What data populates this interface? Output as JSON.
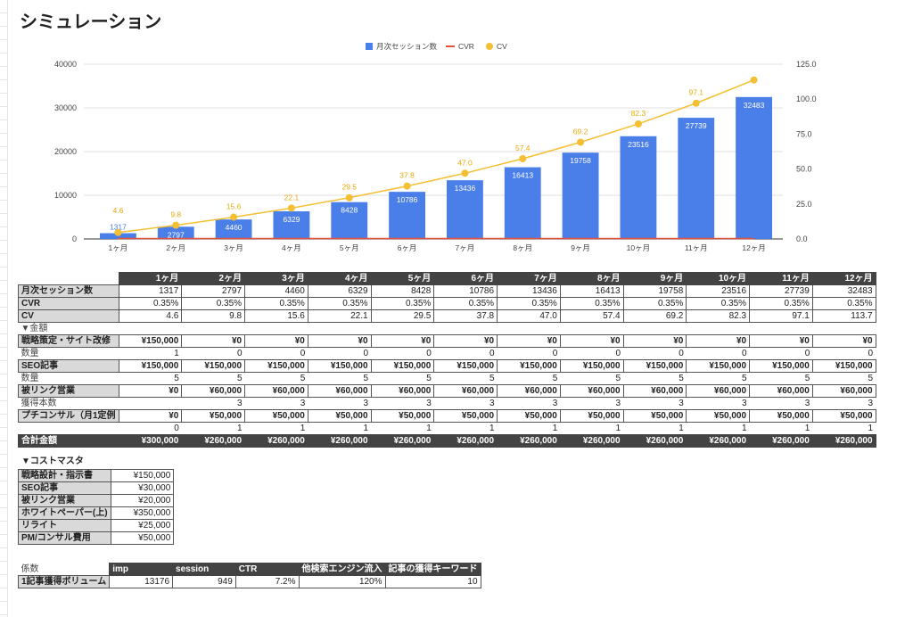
{
  "title": "シミュレーション",
  "chart_data": {
    "type": "bar",
    "legend": [
      "月次セッション数",
      "CVR",
      "CV"
    ],
    "legend_position": "top",
    "categories": [
      "1ヶ月",
      "2ヶ月",
      "3ヶ月",
      "4ヶ月",
      "5ヶ月",
      "6ヶ月",
      "7ヶ月",
      "8ヶ月",
      "9ヶ月",
      "10ヶ月",
      "11ヶ月",
      "12ヶ月"
    ],
    "series": [
      {
        "name": "月次セッション数",
        "type": "bar",
        "axis": "left",
        "color": "#4a7ee8",
        "values": [
          1317,
          2797,
          4460,
          6329,
          8428,
          10786,
          13436,
          16413,
          19758,
          23516,
          27739,
          32483
        ]
      },
      {
        "name": "CVR",
        "type": "line",
        "axis": "right",
        "color": "#e0533e",
        "values": [
          0.35,
          0.35,
          0.35,
          0.35,
          0.35,
          0.35,
          0.35,
          0.35,
          0.35,
          0.35,
          0.35,
          0.35
        ]
      },
      {
        "name": "CV",
        "type": "line",
        "axis": "right",
        "color": "#f4bf32",
        "values": [
          4.6,
          9.8,
          15.6,
          22.1,
          29.5,
          37.8,
          47.0,
          57.4,
          69.2,
          82.3,
          97.1,
          113.7
        ],
        "labels": [
          "4.6",
          "9.8",
          "15.6",
          "22.1",
          "29.5",
          "37.8",
          "47.0",
          "57.4",
          "69.2",
          "82.3",
          "97.1",
          ""
        ]
      }
    ],
    "ylim": [
      0,
      40000
    ],
    "yticks": [
      "0",
      "10000",
      "20000",
      "30000",
      "40000"
    ],
    "y2lim": [
      0,
      125
    ],
    "y2ticks": [
      "0.0",
      "25.0",
      "50.0",
      "75.0",
      "100.0",
      "125.0"
    ]
  },
  "sim": {
    "headers": [
      "1ヶ月",
      "2ヶ月",
      "3ヶ月",
      "4ヶ月",
      "5ヶ月",
      "6ヶ月",
      "7ヶ月",
      "8ヶ月",
      "9ヶ月",
      "10ヶ月",
      "11ヶ月",
      "12ヶ月"
    ],
    "rows": [
      {
        "label": "月次セッション数",
        "style": "lab",
        "values": [
          "1317",
          "2797",
          "4460",
          "6329",
          "8428",
          "10786",
          "13436",
          "16413",
          "19758",
          "23516",
          "27739",
          "32483"
        ]
      },
      {
        "label": "CVR",
        "style": "lab",
        "values": [
          "0.35%",
          "0.35%",
          "0.35%",
          "0.35%",
          "0.35%",
          "0.35%",
          "0.35%",
          "0.35%",
          "0.35%",
          "0.35%",
          "0.35%",
          "0.35%"
        ]
      },
      {
        "label": "CV",
        "style": "lab",
        "values": [
          "4.6",
          "9.8",
          "15.6",
          "22.1",
          "29.5",
          "37.8",
          "47.0",
          "57.4",
          "69.2",
          "82.3",
          "97.1",
          "113.7"
        ]
      },
      {
        "label": "▼金額",
        "style": "section",
        "values": []
      },
      {
        "label": "戦略策定・サイト改修",
        "style": "labb",
        "values": [
          "¥150,000",
          "¥0",
          "¥0",
          "¥0",
          "¥0",
          "¥0",
          "¥0",
          "¥0",
          "¥0",
          "¥0",
          "¥0",
          "¥0"
        ]
      },
      {
        "label": "数量",
        "style": "plain",
        "values": [
          "1",
          "0",
          "0",
          "0",
          "0",
          "0",
          "0",
          "0",
          "0",
          "0",
          "0",
          "0"
        ]
      },
      {
        "label": "SEO記事",
        "style": "labb",
        "values": [
          "¥150,000",
          "¥150,000",
          "¥150,000",
          "¥150,000",
          "¥150,000",
          "¥150,000",
          "¥150,000",
          "¥150,000",
          "¥150,000",
          "¥150,000",
          "¥150,000",
          "¥150,000"
        ]
      },
      {
        "label": "数量",
        "style": "plain",
        "values": [
          "5",
          "5",
          "5",
          "5",
          "5",
          "5",
          "5",
          "5",
          "5",
          "5",
          "5",
          "5"
        ]
      },
      {
        "label": "被リンク営業",
        "style": "labb",
        "values": [
          "¥0",
          "¥60,000",
          "¥60,000",
          "¥60,000",
          "¥60,000",
          "¥60,000",
          "¥60,000",
          "¥60,000",
          "¥60,000",
          "¥60,000",
          "¥60,000",
          "¥60,000"
        ]
      },
      {
        "label": "獲得本数",
        "style": "plain",
        "values": [
          "",
          "3",
          "3",
          "3",
          "3",
          "3",
          "3",
          "3",
          "3",
          "3",
          "3",
          "3"
        ]
      },
      {
        "label": "プチコンサル（月1定例",
        "style": "labb",
        "values": [
          "¥0",
          "¥50,000",
          "¥50,000",
          "¥50,000",
          "¥50,000",
          "¥50,000",
          "¥50,000",
          "¥50,000",
          "¥50,000",
          "¥50,000",
          "¥50,000",
          "¥50,000"
        ]
      },
      {
        "label": "",
        "style": "plain",
        "values": [
          "0",
          "1",
          "1",
          "1",
          "1",
          "1",
          "1",
          "1",
          "1",
          "1",
          "1",
          "1"
        ]
      },
      {
        "label": "合計金額",
        "style": "dark",
        "values": [
          "¥300,000",
          "¥260,000",
          "¥260,000",
          "¥260,000",
          "¥260,000",
          "¥260,000",
          "¥260,000",
          "¥260,000",
          "¥260,000",
          "¥260,000",
          "¥260,000",
          "¥260,000"
        ]
      }
    ]
  },
  "cost": {
    "title": "▼コストマスタ",
    "rows": [
      [
        "戦略設計・指示書",
        "¥150,000"
      ],
      [
        "SEO記事",
        "¥30,000"
      ],
      [
        "被リンク営業",
        "¥20,000"
      ],
      [
        "ホワイトペーパー(上)",
        "¥350,000"
      ],
      [
        "リライト",
        "¥25,000"
      ],
      [
        "PM/コンサル費用",
        "¥50,000"
      ]
    ]
  },
  "coef": {
    "label": "係数",
    "headers": [
      "imp",
      "session",
      "CTR",
      "他検索エンジン流入",
      "記事の獲得キーワード"
    ],
    "row_label": "1記事獲得ボリューム",
    "values": [
      "13176",
      "949",
      "7.2%",
      "120%",
      "10"
    ]
  }
}
